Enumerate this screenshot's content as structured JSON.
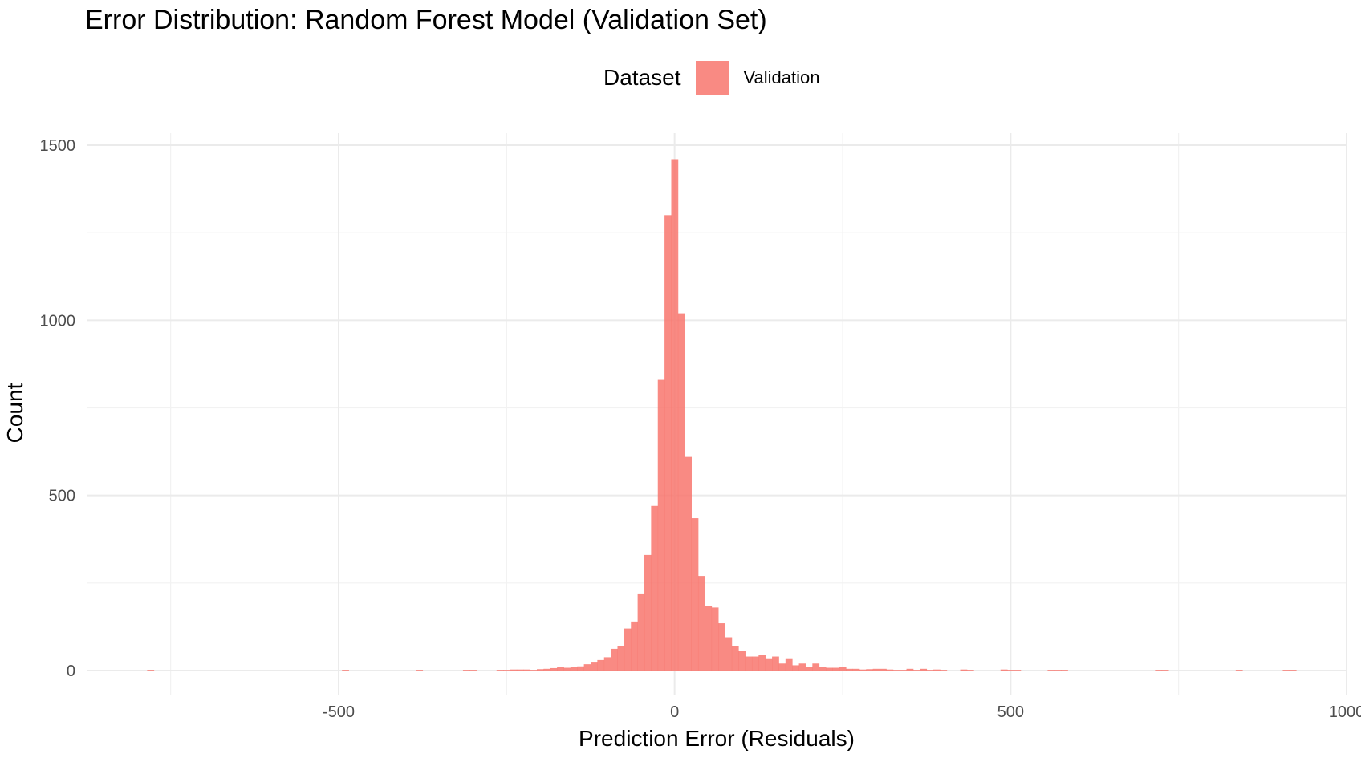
{
  "chart_data": {
    "type": "bar",
    "title": "Error Distribution: Random Forest Model (Validation Set)",
    "xlabel": "Prediction Error (Residuals)",
    "ylabel": "Count",
    "legend": {
      "title": "Dataset",
      "position": "top",
      "entries": [
        "Validation"
      ]
    },
    "fill_color": "#F8766D",
    "grid": true,
    "xlim": [
      -875,
      1000
    ],
    "ylim": [
      0,
      1500
    ],
    "x_ticks": [
      -500,
      0,
      500,
      1000
    ],
    "x_tick_labels": [
      "-500",
      "0",
      "500",
      "1000"
    ],
    "y_ticks": [
      0,
      500,
      1000,
      1500
    ],
    "y_tick_labels": [
      "0",
      "500",
      "1000",
      "1500"
    ],
    "bin_width": 10,
    "series": [
      {
        "name": "Validation",
        "x": [
          -780,
          -490,
          -380,
          -310,
          -300,
          -260,
          -250,
          -240,
          -230,
          -220,
          -210,
          -200,
          -190,
          -180,
          -170,
          -160,
          -150,
          -140,
          -130,
          -120,
          -110,
          -100,
          -90,
          -80,
          -70,
          -60,
          -50,
          -40,
          -30,
          -20,
          -10,
          0,
          10,
          20,
          30,
          40,
          50,
          60,
          70,
          80,
          90,
          100,
          110,
          120,
          130,
          140,
          150,
          160,
          170,
          180,
          190,
          200,
          210,
          220,
          230,
          240,
          250,
          260,
          270,
          280,
          290,
          300,
          310,
          320,
          330,
          340,
          350,
          360,
          370,
          380,
          390,
          400,
          430,
          440,
          490,
          500,
          510,
          560,
          570,
          580,
          720,
          730,
          840,
          910,
          920
        ],
        "values": [
          2,
          2,
          2,
          2,
          2,
          2,
          2,
          3,
          3,
          3,
          2,
          4,
          5,
          7,
          10,
          8,
          10,
          12,
          18,
          25,
          30,
          38,
          62,
          70,
          120,
          140,
          220,
          330,
          470,
          830,
          1300,
          1460,
          1020,
          610,
          435,
          270,
          185,
          180,
          135,
          95,
          70,
          55,
          40,
          40,
          45,
          35,
          40,
          20,
          35,
          15,
          20,
          10,
          20,
          10,
          8,
          8,
          10,
          5,
          5,
          3,
          4,
          5,
          5,
          3,
          2,
          2,
          5,
          2,
          5,
          2,
          3,
          2,
          3,
          2,
          3,
          2,
          2,
          2,
          2,
          2,
          2,
          2,
          2,
          2,
          2
        ]
      }
    ]
  }
}
